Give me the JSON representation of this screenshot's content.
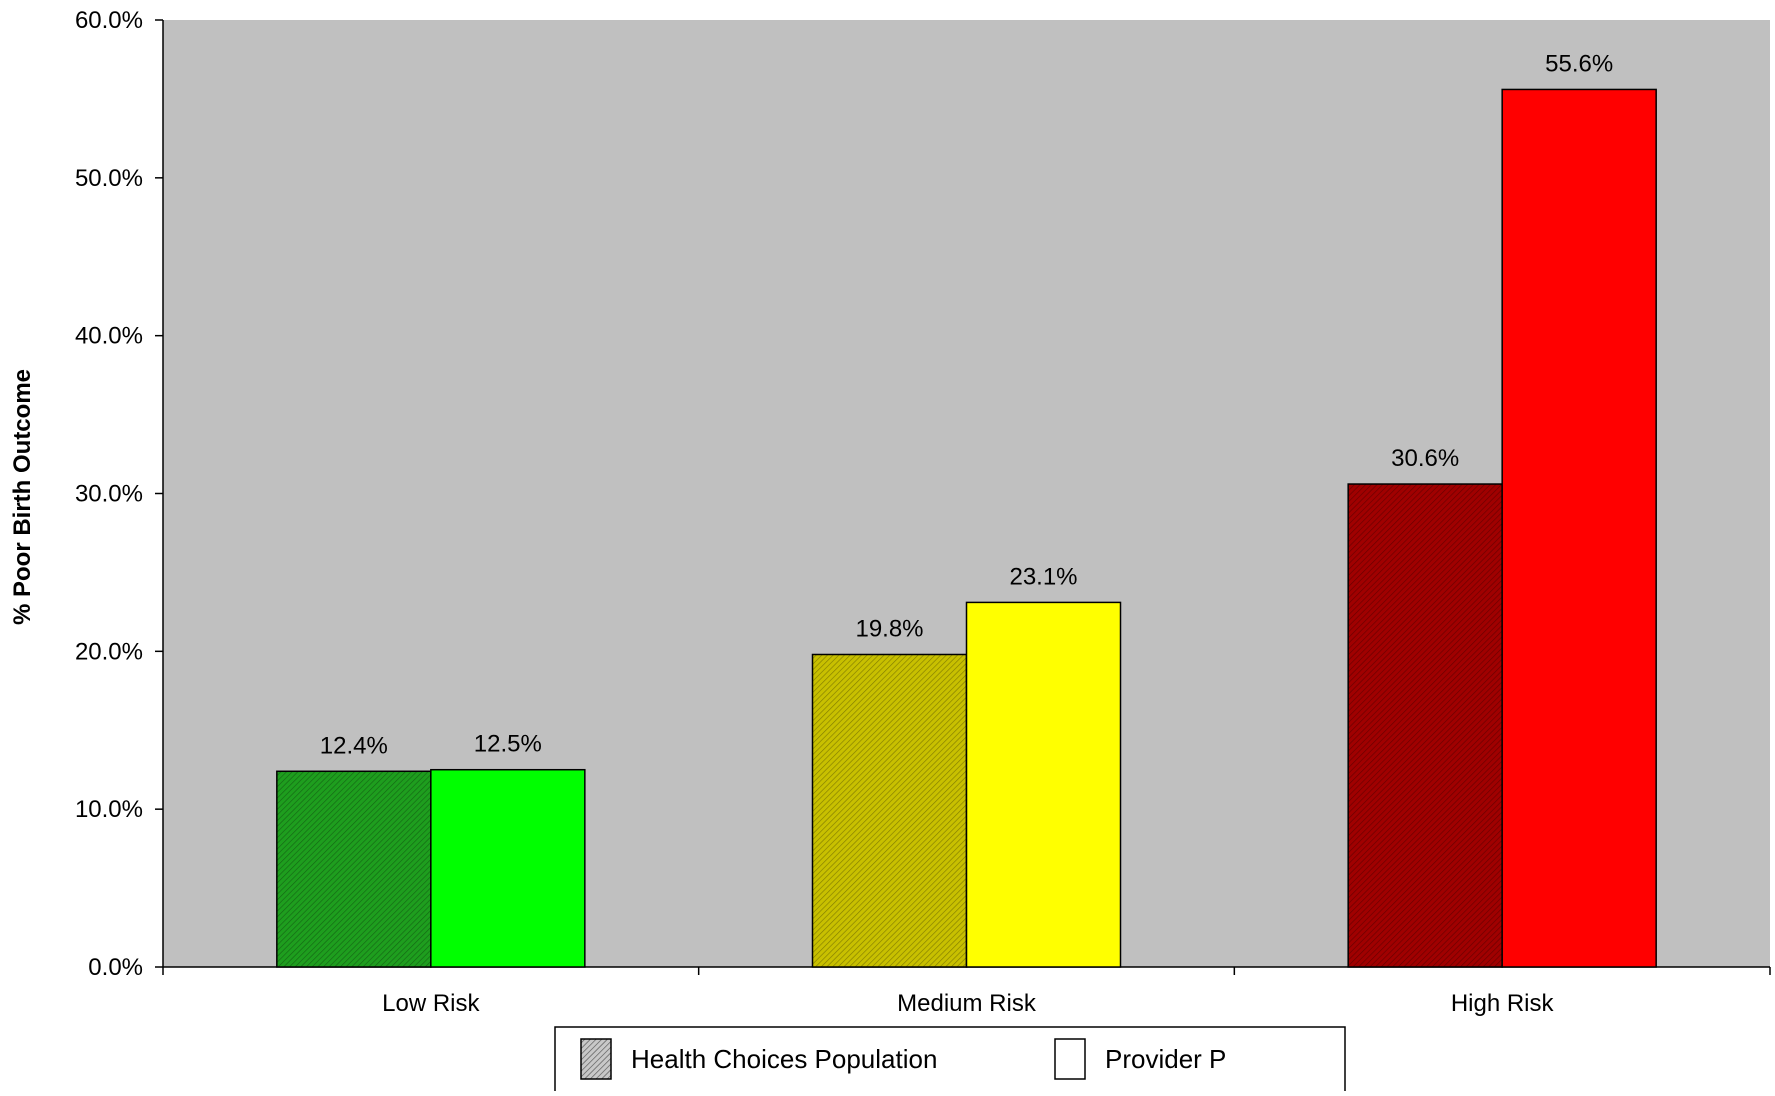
{
  "chart_data": {
    "type": "bar",
    "categories": [
      "Low Risk",
      "Medium Risk",
      "High Risk"
    ],
    "series": [
      {
        "name": "Health Choices Population",
        "values": [
          12.4,
          19.8,
          30.6
        ],
        "labels": [
          "12.4%",
          "19.8%",
          "30.6%"
        ],
        "colors": [
          "#1e9e1e",
          "#c8c000",
          "#a00000"
        ],
        "pattern": "hatched"
      },
      {
        "name": "Provider P",
        "values": [
          12.5,
          23.1,
          55.6
        ],
        "labels": [
          "12.5%",
          "23.1%",
          "55.6%"
        ],
        "colors": [
          "#00ff00",
          "#ffff00",
          "#ff0000"
        ],
        "pattern": "solid"
      }
    ],
    "title": "",
    "xlabel": "",
    "ylabel": "% Poor Birth Outcome",
    "ylim": [
      0,
      60
    ],
    "yticks": [
      "0.0%",
      "10.0%",
      "20.0%",
      "30.0%",
      "40.0%",
      "50.0%",
      "60.0%"
    ],
    "plot_background": "#c0c0c0",
    "grid": false,
    "legend_position": "bottom-center"
  }
}
